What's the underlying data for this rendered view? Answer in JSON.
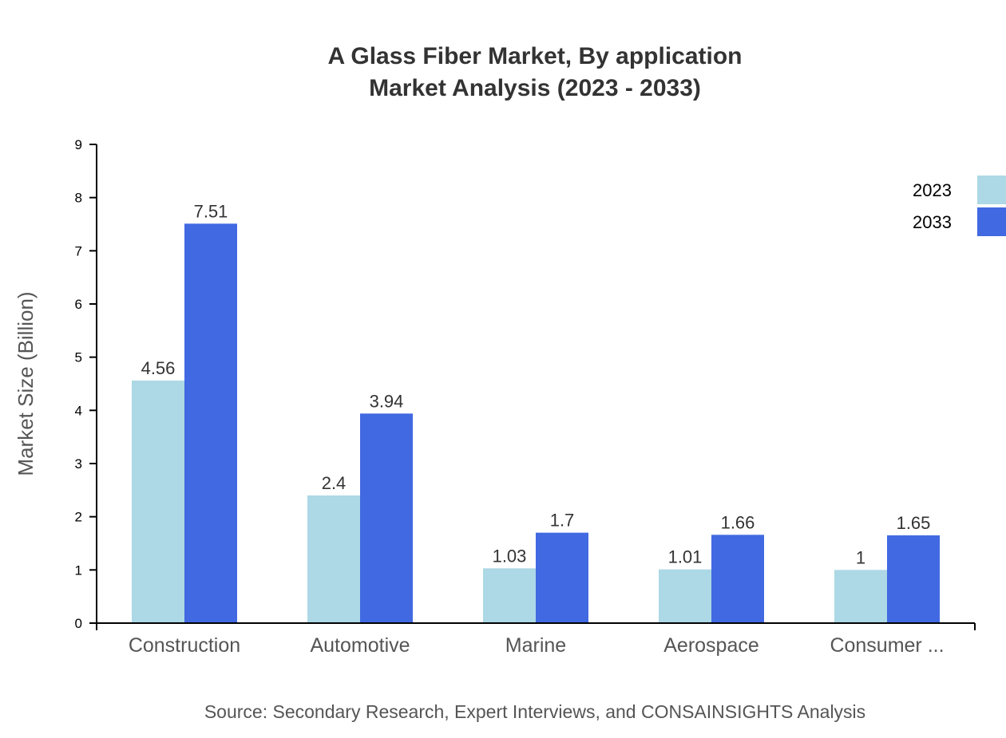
{
  "chart_data": {
    "type": "bar",
    "title": "A Glass Fiber Market, By application",
    "subtitle": "Market Analysis (2023 - 2033)",
    "xlabel": "",
    "ylabel": "Market Size (Billion)",
    "ylim": [
      0,
      9
    ],
    "yticks": [
      "0",
      "1",
      "2",
      "3",
      "4",
      "5",
      "6",
      "7",
      "8",
      "9"
    ],
    "categories": [
      "Construction",
      "Automotive",
      "Marine",
      "Aerospace",
      "Consumer ..."
    ],
    "series": [
      {
        "name": "2023",
        "color": "#ADD8E6",
        "values": [
          4.56,
          2.4,
          1.03,
          1.01,
          1
        ]
      },
      {
        "name": "2033",
        "color": "#4169E1",
        "values": [
          7.51,
          3.94,
          1.7,
          1.66,
          1.65
        ]
      }
    ],
    "legend": "top-right",
    "grid": false,
    "source": "Source: Secondary Research, Expert Interviews, and CONSAINSIGHTS Analysis"
  }
}
